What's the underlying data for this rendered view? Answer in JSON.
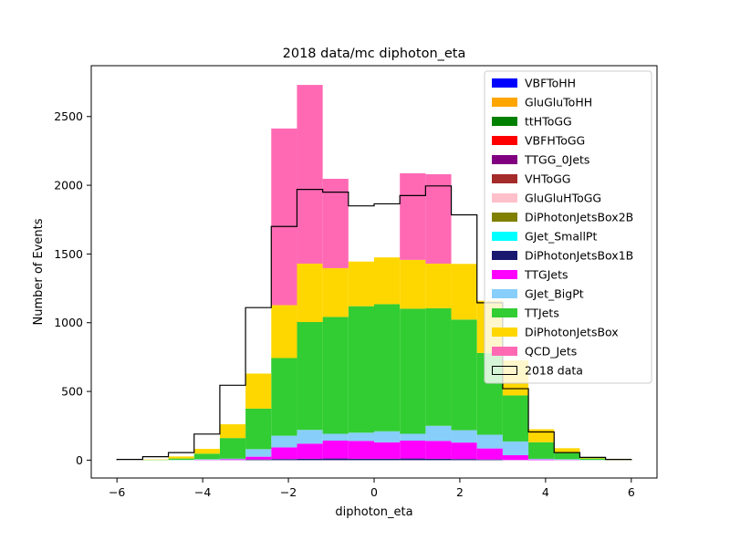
{
  "chart_data": {
    "type": "bar",
    "title": "2018 data/mc diphoton_eta",
    "xlabel": "diphoton_eta",
    "ylabel": "Number of Events",
    "xlim": [
      -6.6,
      6.6
    ],
    "ylim": [
      -130,
      2870
    ],
    "xticks": [
      -6,
      -4,
      -2,
      0,
      2,
      4,
      6
    ],
    "yticks": [
      0,
      500,
      1000,
      1500,
      2000,
      2500
    ],
    "bin_edges": [
      -6.0,
      -5.4,
      -4.8,
      -4.2,
      -3.6,
      -3.0,
      -2.4,
      -1.8,
      -1.2,
      -0.6,
      0.0,
      0.6,
      1.2,
      1.8,
      2.4,
      3.0,
      3.6,
      4.2,
      4.8,
      5.4,
      6.0
    ],
    "legend_position": "upper right",
    "grid": false,
    "series": [
      {
        "name": "VBFToHH",
        "color": "#0000ff",
        "values": [
          0,
          0,
          0,
          0,
          0,
          0,
          0,
          0,
          0,
          0,
          0,
          0,
          0,
          0,
          0,
          0,
          0,
          0,
          0,
          0
        ]
      },
      {
        "name": "GluGluToHH",
        "color": "#ffa500",
        "values": [
          0,
          0,
          0,
          0,
          0,
          0,
          0,
          0,
          0,
          0,
          0,
          0,
          0,
          0,
          0,
          0,
          0,
          0,
          0,
          0
        ]
      },
      {
        "name": "ttHToGG",
        "color": "#008000",
        "values": [
          0,
          0,
          0,
          0,
          0,
          0,
          0,
          0,
          0,
          0,
          0,
          0,
          0,
          0,
          0,
          0,
          0,
          0,
          0,
          0
        ]
      },
      {
        "name": "VBFHToGG",
        "color": "#ff0000",
        "values": [
          0,
          0,
          0,
          0,
          0,
          0,
          0,
          0,
          0,
          0,
          0,
          0,
          0,
          0,
          0,
          0,
          0,
          0,
          0,
          0
        ]
      },
      {
        "name": "TTGG_0Jets",
        "color": "#800080",
        "values": [
          0,
          0,
          0,
          0,
          0,
          0,
          0,
          0,
          0,
          0,
          0,
          0,
          0,
          0,
          0,
          0,
          0,
          0,
          0,
          0
        ]
      },
      {
        "name": "VHToGG",
        "color": "#a52a2a",
        "values": [
          0,
          0,
          0,
          0,
          0,
          0,
          0,
          0,
          0,
          0,
          0,
          0,
          0,
          0,
          0,
          0,
          0,
          0,
          0,
          0
        ]
      },
      {
        "name": "GluGluHToGG",
        "color": "#ffc0cb",
        "values": [
          0,
          0,
          0,
          0,
          0,
          0,
          0,
          0,
          0,
          0,
          0,
          0,
          0,
          0,
          0,
          0,
          0,
          0,
          0,
          0
        ]
      },
      {
        "name": "DiPhotonJetsBox2B",
        "color": "#808000",
        "values": [
          0,
          0,
          0,
          0,
          0,
          0,
          0,
          0,
          0,
          0,
          0,
          0,
          0,
          0,
          0,
          0,
          0,
          0,
          0,
          0
        ]
      },
      {
        "name": "GJet_SmallPt",
        "color": "#00ffff",
        "values": [
          0,
          0,
          0,
          0,
          0,
          0,
          0,
          0,
          0,
          0,
          0,
          0,
          0,
          0,
          0,
          0,
          0,
          0,
          0,
          0
        ]
      },
      {
        "name": "DiPhotonJetsBox1B",
        "color": "#191970",
        "values": [
          0,
          0,
          0,
          0,
          1,
          5,
          8,
          10,
          12,
          10,
          10,
          12,
          10,
          8,
          5,
          1,
          0,
          0,
          0,
          0
        ]
      },
      {
        "name": "TTGJets",
        "color": "#ff00ff",
        "values": [
          0,
          0,
          0,
          2,
          5,
          20,
          85,
          110,
          130,
          130,
          120,
          130,
          130,
          120,
          80,
          35,
          5,
          2,
          0,
          0
        ]
      },
      {
        "name": "GJet_BigPt",
        "color": "#87cefa",
        "values": [
          0,
          0,
          2,
          5,
          5,
          55,
          85,
          100,
          50,
          60,
          80,
          50,
          110,
          90,
          100,
          100,
          5,
          5,
          2,
          0
        ]
      },
      {
        "name": "TTJets",
        "color": "#32cd32",
        "values": [
          0,
          2,
          10,
          40,
          150,
          295,
          565,
          785,
          850,
          920,
          925,
          910,
          855,
          805,
          595,
          335,
          120,
          45,
          10,
          1
        ]
      },
      {
        "name": "DiPhotonJetsBox",
        "color": "#ffd700",
        "values": [
          0,
          3,
          15,
          35,
          100,
          255,
          385,
          425,
          355,
          325,
          340,
          355,
          325,
          405,
          380,
          255,
          95,
          35,
          10,
          2
        ]
      },
      {
        "name": "QCD_Jets",
        "color": "#ff69b4",
        "values": [
          0,
          0,
          0,
          0,
          0,
          0,
          1285,
          1300,
          650,
          0,
          0,
          630,
          650,
          0,
          0,
          0,
          0,
          0,
          0,
          0
        ]
      }
    ],
    "data_series": {
      "name": "2018 data",
      "color": "#000000",
      "values": [
        5,
        25,
        55,
        190,
        545,
        1110,
        1700,
        1970,
        1950,
        1850,
        1865,
        1925,
        1995,
        1785,
        1145,
        520,
        205,
        55,
        20,
        5
      ]
    }
  }
}
